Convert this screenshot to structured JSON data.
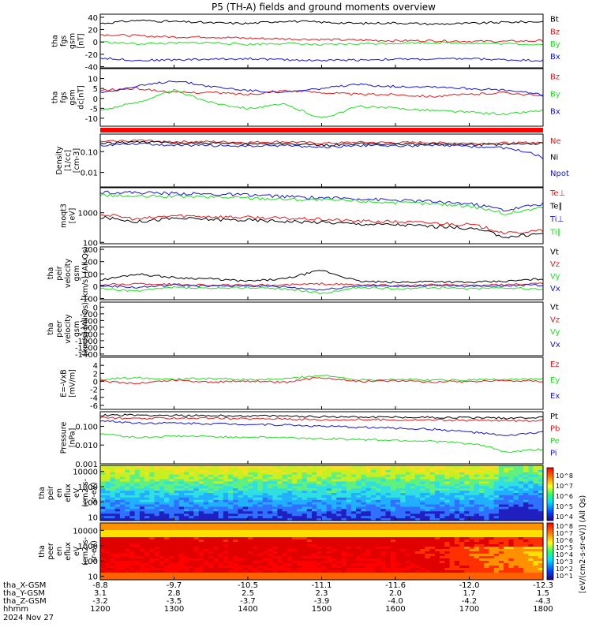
{
  "title": "P5 (TH-A) fields and ground moments overview",
  "footer": {
    "rows": [
      {
        "label": "tha_X-GSM",
        "values": [
          "-8.8",
          "-9.7",
          "-10.5",
          "-11.1",
          "-11.6",
          "-12.0",
          "-12.3"
        ]
      },
      {
        "label": "tha_Y-GSM",
        "values": [
          "3.1",
          "2.8",
          "2.5",
          "2.3",
          "2.0",
          "1.7",
          "1.5"
        ]
      },
      {
        "label": "tha_Z-GSM",
        "values": [
          "-3.2",
          "-3.5",
          "-3.7",
          "-3.9",
          "-4.0",
          "-4.2",
          "-4.3"
        ]
      },
      {
        "label": "hhmm",
        "values": [
          "1200",
          "1300",
          "1400",
          "1500",
          "1600",
          "1700",
          "1800"
        ]
      }
    ],
    "date": "2024 Nov 27"
  },
  "colorbar": {
    "label": "[eV/(cm2-s-sr-eV)] (All Qs)",
    "upper_ticks": [
      "10^8",
      "10^7",
      "10^6",
      "10^5",
      "10^4"
    ],
    "lower_ticks": [
      "10^8",
      "10^7",
      "10^6",
      "10^5",
      "10^4",
      "10^3",
      "10^2",
      "10^1"
    ]
  },
  "colors": {
    "black": "#000000",
    "red": "#e41a1c",
    "green": "#22dd22",
    "blue": "#1515e0"
  },
  "chart_data": [
    {
      "type": "line",
      "ylabel_lines": [
        "tha",
        "fgs",
        "gsm",
        "[nT]"
      ],
      "ylim": [
        -42,
        45
      ],
      "yticks": [
        "40",
        "20",
        "0",
        "-20",
        "-40"
      ],
      "ytick_values": [
        40,
        20,
        0,
        -20,
        -40
      ],
      "legend": [
        "Bt",
        "Bz",
        "By",
        "Bx"
      ],
      "series": [
        {
          "name": "Bt",
          "values": [
            30,
            35,
            33,
            31,
            30,
            34,
            32,
            30,
            31,
            29,
            30,
            32,
            33
          ]
        },
        {
          "name": "Bz",
          "values": [
            12,
            10,
            8,
            8,
            6,
            5,
            4,
            3,
            2,
            2,
            1,
            1,
            2
          ]
        },
        {
          "name": "By",
          "values": [
            0,
            -3,
            -2,
            -1,
            -4,
            -2,
            -5,
            -3,
            -2,
            -1,
            -2,
            -3,
            -4
          ]
        },
        {
          "name": "Bx",
          "values": [
            -26,
            -30,
            -29,
            -28,
            -27,
            -29,
            -30,
            -29,
            -28,
            -28,
            -27,
            -29,
            -30
          ]
        }
      ]
    },
    {
      "type": "line",
      "ylabel_lines": [
        "tha",
        "fgs",
        "gsm",
        "dc[nT]"
      ],
      "ylim": [
        -14,
        15
      ],
      "yticks": [
        "10",
        "5",
        "0",
        "-5",
        "-10"
      ],
      "ytick_values": [
        10,
        5,
        0,
        -5,
        -10
      ],
      "legend": [
        "Bz",
        "By",
        "Bx"
      ],
      "series": [
        {
          "name": "Bz",
          "values": [
            4,
            5,
            3,
            3,
            2,
            4,
            3,
            2,
            2,
            1,
            2,
            3,
            1
          ]
        },
        {
          "name": "By",
          "values": [
            -6,
            -2,
            4,
            -2,
            -5,
            -3,
            -10,
            -4,
            -5,
            -6,
            -7,
            -8,
            -6
          ]
        },
        {
          "name": "Bx",
          "values": [
            3,
            6,
            9,
            6,
            4,
            3,
            5,
            7,
            6,
            6,
            5,
            4,
            2
          ]
        }
      ]
    },
    {
      "type": "line",
      "ylabel_lines": [
        "Density",
        "[1/cc]",
        "[cm-3]"
      ],
      "log": true,
      "ylim": [
        0.002,
        0.7
      ],
      "yticks": [
        "0.10",
        "0.01"
      ],
      "ytick_values": [
        0.1,
        0.01
      ],
      "legend": [
        "Ne",
        "Ni",
        "Npot"
      ],
      "series": [
        {
          "name": "Ne",
          "values": [
            0.3,
            0.35,
            0.3,
            0.3,
            0.28,
            0.3,
            0.25,
            0.28,
            0.27,
            0.28,
            0.25,
            0.26,
            0.28
          ]
        },
        {
          "name": "Ni",
          "values": [
            0.25,
            0.3,
            0.26,
            0.25,
            0.24,
            0.25,
            0.2,
            0.24,
            0.23,
            0.24,
            0.22,
            0.22,
            0.25
          ]
        },
        {
          "name": "Npot",
          "values": [
            0.2,
            0.25,
            0.2,
            0.2,
            0.18,
            0.2,
            0.16,
            0.2,
            0.19,
            0.2,
            0.18,
            0.15,
            0.05
          ]
        }
      ]
    },
    {
      "type": "line",
      "ylabel_lines": [
        "moqt3",
        "[eV]"
      ],
      "log": true,
      "ylim": [
        90,
        7000
      ],
      "yticks": [
        "1000",
        "100"
      ],
      "ytick_values": [
        1000,
        100
      ],
      "legend": [
        "Te⊥",
        "Te∥",
        "Ti⊥",
        "Ti∥"
      ],
      "series": [
        {
          "name": "Te⊥",
          "values": [
            900,
            600,
            800,
            750,
            700,
            650,
            600,
            520,
            500,
            450,
            400,
            200,
            250
          ]
        },
        {
          "name": "Te∥",
          "values": [
            700,
            500,
            650,
            600,
            560,
            520,
            480,
            420,
            400,
            350,
            300,
            150,
            200
          ]
        },
        {
          "name": "Ti⊥",
          "values": [
            5000,
            4800,
            4500,
            4200,
            4000,
            3500,
            3200,
            3000,
            2600,
            2400,
            2000,
            1200,
            2000
          ]
        },
        {
          "name": "Ti∥",
          "values": [
            4000,
            3500,
            3600,
            3400,
            3200,
            2900,
            2700,
            2500,
            2200,
            2000,
            1700,
            900,
            1500
          ]
        }
      ]
    },
    {
      "type": "line",
      "ylabel_lines": [
        "tha",
        "peir",
        "velocity",
        "gsm",
        "[km/s] (All Qs)"
      ],
      "ylim": [
        -110,
        320
      ],
      "yticks": [
        "300",
        "200",
        "100",
        "0",
        "-100"
      ],
      "ytick_values": [
        300,
        200,
        100,
        0,
        -100
      ],
      "legend": [
        "Vt",
        "Vz",
        "Vy",
        "Vx"
      ],
      "series": [
        {
          "name": "Vt",
          "values": [
            50,
            100,
            70,
            60,
            40,
            60,
            130,
            40,
            30,
            40,
            30,
            40,
            60
          ]
        },
        {
          "name": "Vz",
          "values": [
            10,
            20,
            15,
            10,
            5,
            10,
            20,
            10,
            5,
            10,
            5,
            10,
            20
          ]
        },
        {
          "name": "Vy",
          "values": [
            -20,
            -40,
            -10,
            -20,
            -10,
            -20,
            -60,
            -10,
            -20,
            -10,
            -20,
            -10,
            -30
          ]
        },
        {
          "name": "Vx",
          "values": [
            5,
            -10,
            10,
            0,
            5,
            -5,
            -30,
            5,
            0,
            5,
            0,
            5,
            10
          ]
        }
      ]
    },
    {
      "type": "line",
      "ylabel_lines": [
        "tha",
        "peer",
        "velocity",
        "gsm",
        "[km/s] (All Qs)"
      ],
      "ylim": [
        -1450,
        150
      ],
      "yticks": [
        "0",
        "-200",
        "-400",
        "-600",
        "-800",
        "-1000",
        "-1200",
        "-1400"
      ],
      "ytick_values": [
        0,
        -200,
        -400,
        -600,
        -800,
        -1000,
        -1200,
        -1400
      ],
      "legend": [
        "Vt",
        "Vz",
        "Vy",
        "Vx"
      ],
      "series": []
    },
    {
      "type": "line",
      "ylabel_lines": [
        "E=-VxB",
        "[mV/m]"
      ],
      "ylim": [
        -7,
        6
      ],
      "yticks": [
        "4",
        "2",
        "0",
        "-2",
        "-4",
        "-6"
      ],
      "ytick_values": [
        4,
        2,
        0,
        -2,
        -4,
        -6
      ],
      "legend": [
        "Ez",
        "Ey",
        "Ex"
      ],
      "series": [
        {
          "name": "Ey",
          "values": [
            0.5,
            1,
            0.5,
            0.8,
            0.3,
            0.6,
            1.5,
            0.4,
            0.5,
            0.3,
            0.4,
            0.5,
            0.6
          ]
        },
        {
          "name": "Ez",
          "values": [
            0,
            -0.5,
            0.3,
            -0.2,
            0.1,
            -0.3,
            1,
            0,
            0.2,
            -0.1,
            0,
            0.2,
            0.1
          ]
        }
      ]
    },
    {
      "type": "line",
      "ylabel_lines": [
        "Pressure",
        "[nPa]"
      ],
      "log": true,
      "ylim": [
        0.001,
        0.6
      ],
      "yticks": [
        "0.100",
        "0.010",
        "0.001"
      ],
      "ytick_values": [
        0.1,
        0.01,
        0.001
      ],
      "legend": [
        "Pt",
        "Pb",
        "Pe",
        "Pi"
      ],
      "series": [
        {
          "name": "Pt",
          "values": [
            0.4,
            0.4,
            0.38,
            0.37,
            0.36,
            0.35,
            0.33,
            0.32,
            0.31,
            0.3,
            0.29,
            0.28,
            0.3
          ]
        },
        {
          "name": "Pb",
          "values": [
            0.3,
            0.25,
            0.28,
            0.27,
            0.25,
            0.26,
            0.22,
            0.23,
            0.22,
            0.22,
            0.21,
            0.2,
            0.21
          ]
        },
        {
          "name": "Pe",
          "values": [
            0.04,
            0.025,
            0.03,
            0.028,
            0.027,
            0.025,
            0.022,
            0.02,
            0.018,
            0.016,
            0.012,
            0.004,
            0.006
          ]
        },
        {
          "name": "Pi",
          "values": [
            0.2,
            0.15,
            0.15,
            0.14,
            0.13,
            0.12,
            0.1,
            0.09,
            0.08,
            0.07,
            0.05,
            0.03,
            0.05
          ]
        }
      ]
    },
    {
      "type": "heatmap",
      "ylabel_lines": [
        "tha",
        "peir",
        "en",
        "eflux",
        "eV",
        "(cm2-s-",
        "sr-eV)"
      ],
      "log": true,
      "ylim": [
        6,
        25000
      ],
      "yticks": [
        "10000",
        "1000",
        "100",
        "10"
      ],
      "ytick_values": [
        10000,
        1000,
        100,
        10
      ]
    },
    {
      "type": "heatmap",
      "ylabel_lines": [
        "tha",
        "peer",
        "en",
        "eflux",
        "eV",
        "(cm2-s-",
        "sr-eV)"
      ],
      "log": true,
      "ylim": [
        6,
        30000
      ],
      "yticks": [
        "10000",
        "1000",
        "100",
        "10"
      ],
      "ytick_values": [
        10000,
        1000,
        100,
        10
      ]
    }
  ]
}
